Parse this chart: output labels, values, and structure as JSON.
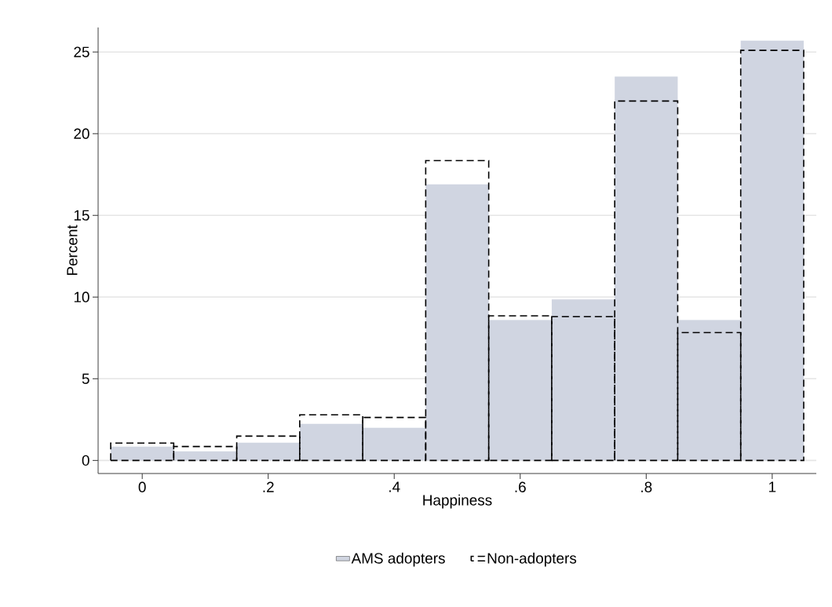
{
  "chart_data": {
    "type": "histogram",
    "xlabel": "Happiness",
    "ylabel": "Percent",
    "bins": [
      -0.05,
      0.05,
      0.15,
      0.25,
      0.35,
      0.45,
      0.55,
      0.65,
      0.75,
      0.85,
      0.95,
      1.05
    ],
    "series": [
      {
        "name": "AMS adopters",
        "color": "#d0d5e1",
        "values": [
          0.85,
          0.56,
          1.09,
          2.24,
          2.0,
          16.9,
          8.6,
          9.86,
          23.5,
          8.6,
          25.7
        ]
      },
      {
        "name": "Non-adopters",
        "color": "#000000",
        "line_style": "dashed",
        "values": [
          1.06,
          0.85,
          1.49,
          2.79,
          2.63,
          18.35,
          8.85,
          8.8,
          22.0,
          7.83,
          25.1
        ]
      }
    ],
    "xlim": [
      -0.07,
      1.07
    ],
    "ylim": [
      -0.8,
      26.5
    ],
    "xticks": [
      0,
      {
        "value": 0.2,
        "label": ".2"
      },
      {
        "value": 0.4,
        "label": ".4"
      },
      {
        "value": 0.6,
        "label": ".6"
      },
      {
        "value": 0.8,
        "label": ".8"
      },
      1
    ],
    "yticks": [
      0,
      5,
      10,
      15,
      20,
      25
    ],
    "grid": "y",
    "legend": "bottom"
  }
}
